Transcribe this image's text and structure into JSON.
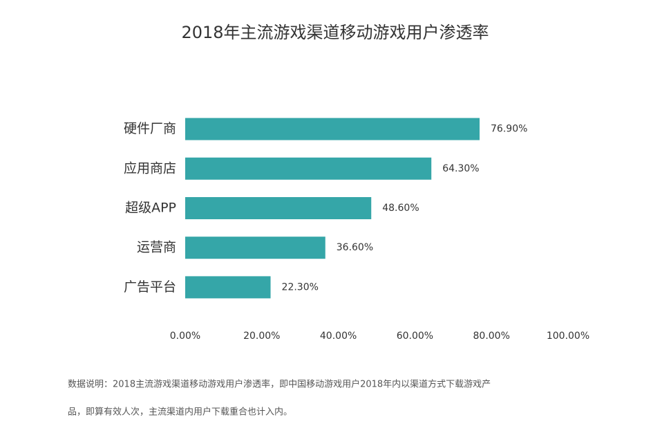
{
  "chart_data": {
    "type": "bar",
    "orientation": "horizontal",
    "title": "2018年主流游戏渠道移动游戏用户渗透率",
    "categories": [
      "硬件厂商",
      "应用商店",
      "超级APP",
      "运营商",
      "广告平台"
    ],
    "values": [
      76.9,
      64.3,
      48.6,
      36.6,
      22.3
    ],
    "value_labels": [
      "76.90%",
      "64.30%",
      "48.60%",
      "36.60%",
      "22.30%"
    ],
    "color": "#35a6a8",
    "xlim": [
      0,
      100
    ],
    "xticks": [
      {
        "value": 0,
        "label": "0.00%"
      },
      {
        "value": 20,
        "label": "20.00%"
      },
      {
        "value": 40,
        "label": "40.00%"
      },
      {
        "value": 60,
        "label": "60.00%"
      },
      {
        "value": 80,
        "label": "80.00%"
      },
      {
        "value": 100,
        "label": "100.00%"
      }
    ],
    "grid": false,
    "footnote": [
      "数据说明：2018主流游戏渠道移动游戏用户渗透率，即中国移动游戏用户2018年内以渠道方式下载游戏产",
      "品，即算有效人次，主流渠道内用户下载重合也计入内。"
    ]
  }
}
